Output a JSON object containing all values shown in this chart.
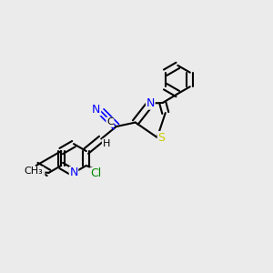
{
  "background_color": "#ebebeb",
  "bond_color": "#000000",
  "bond_width": 1.5,
  "atom_colors": {
    "N": "#0000ff",
    "S": "#cccc00",
    "Cl": "#008800",
    "C": "#000000",
    "H": "#000000"
  },
  "font_size": 8,
  "figsize": [
    3.0,
    3.0
  ],
  "dpi": 100
}
